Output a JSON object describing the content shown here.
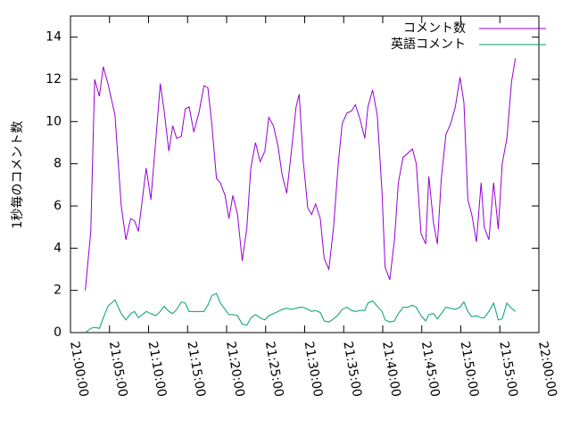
{
  "chart_data": {
    "type": "line",
    "y_label": "1秒毎のコメント数",
    "x": [
      "21:01:54",
      "21:02:36",
      "21:03:06",
      "21:03:42",
      "21:04:12",
      "21:04:48",
      "21:05:42",
      "21:06:30",
      "21:07:06",
      "21:07:42",
      "21:08:12",
      "21:08:42",
      "21:09:12",
      "21:09:42",
      "21:10:18",
      "21:10:54",
      "21:11:30",
      "21:12:00",
      "21:12:36",
      "21:13:06",
      "21:13:36",
      "21:14:12",
      "21:14:42",
      "21:15:12",
      "21:15:48",
      "21:16:30",
      "21:17:06",
      "21:17:36",
      "21:18:06",
      "21:18:42",
      "21:19:12",
      "21:19:48",
      "21:20:18",
      "21:20:48",
      "21:21:24",
      "21:22:00",
      "21:22:36",
      "21:23:06",
      "21:23:42",
      "21:24:18",
      "21:24:54",
      "21:25:24",
      "21:26:00",
      "21:26:36",
      "21:27:06",
      "21:27:42",
      "21:28:18",
      "21:28:54",
      "21:29:18",
      "21:29:48",
      "21:30:24",
      "21:30:54",
      "21:31:24",
      "21:32:00",
      "21:32:30",
      "21:33:06",
      "21:33:42",
      "21:34:18",
      "21:34:48",
      "21:35:24",
      "21:36:00",
      "21:36:30",
      "21:37:06",
      "21:37:42",
      "21:38:06",
      "21:38:42",
      "21:39:18",
      "21:39:54",
      "21:40:18",
      "21:40:54",
      "21:41:30",
      "21:42:00",
      "21:42:36",
      "21:43:12",
      "21:43:48",
      "21:44:18",
      "21:44:54",
      "21:45:30",
      "21:45:54",
      "21:46:30",
      "21:47:00",
      "21:47:30",
      "21:48:06",
      "21:48:42",
      "21:49:18",
      "21:49:54",
      "21:50:24",
      "21:50:54",
      "21:51:24",
      "21:52:00",
      "21:52:36",
      "21:53:00",
      "21:53:36",
      "21:54:12",
      "21:54:48",
      "21:55:18",
      "21:55:54",
      "21:56:30",
      "21:57:00"
    ],
    "series": [
      {
        "name": "コメント数",
        "color": "#9400d3",
        "values": [
          2.0,
          4.8,
          12.0,
          11.2,
          12.6,
          11.8,
          10.3,
          6.0,
          4.4,
          5.4,
          5.3,
          4.8,
          6.3,
          7.8,
          6.3,
          9.0,
          11.8,
          10.5,
          8.6,
          9.8,
          9.2,
          9.3,
          10.6,
          10.7,
          9.5,
          10.5,
          11.7,
          11.6,
          9.9,
          7.3,
          7.1,
          6.5,
          5.4,
          6.5,
          5.6,
          3.4,
          5.0,
          7.8,
          9.0,
          8.1,
          8.6,
          10.2,
          9.8,
          8.8,
          7.5,
          6.6,
          8.6,
          10.7,
          11.3,
          8.2,
          5.9,
          5.6,
          6.1,
          5.4,
          3.5,
          3.0,
          5.0,
          8.0,
          9.9,
          10.4,
          10.5,
          10.8,
          10.1,
          9.2,
          10.7,
          11.5,
          10.3,
          6.7,
          3.1,
          2.5,
          4.4,
          7.1,
          8.3,
          8.5,
          8.7,
          8.0,
          4.7,
          4.2,
          7.4,
          5.2,
          4.2,
          7.3,
          9.4,
          9.9,
          10.7,
          12.1,
          10.9,
          6.3,
          5.6,
          4.3,
          7.1,
          5.0,
          4.4,
          7.1,
          4.9,
          8.0,
          9.2,
          11.9,
          13.0
        ]
      },
      {
        "name": "英語コメント",
        "color": "#009e73",
        "values": [
          0.0,
          0.2,
          0.25,
          0.2,
          0.7,
          1.25,
          1.55,
          0.9,
          0.6,
          0.9,
          1.0,
          0.7,
          0.85,
          1.0,
          0.9,
          0.8,
          1.0,
          1.25,
          1.0,
          0.9,
          1.1,
          1.45,
          1.4,
          1.0,
          1.0,
          1.0,
          1.0,
          1.3,
          1.75,
          1.85,
          1.4,
          1.1,
          0.85,
          0.85,
          0.8,
          0.4,
          0.35,
          0.7,
          0.85,
          0.7,
          0.6,
          0.8,
          0.9,
          1.0,
          1.1,
          1.15,
          1.1,
          1.15,
          1.2,
          1.2,
          1.1,
          1.0,
          1.05,
          0.95,
          0.55,
          0.5,
          0.65,
          0.85,
          1.1,
          1.2,
          1.05,
          1.0,
          1.05,
          1.05,
          1.4,
          1.5,
          1.25,
          1.0,
          0.6,
          0.5,
          0.55,
          0.9,
          1.2,
          1.2,
          1.3,
          1.2,
          0.8,
          0.55,
          0.85,
          0.9,
          0.65,
          0.9,
          1.2,
          1.15,
          1.1,
          1.2,
          1.45,
          1.0,
          0.75,
          0.8,
          0.7,
          0.7,
          1.0,
          1.4,
          0.6,
          0.65,
          1.4,
          1.15,
          1.0
        ]
      }
    ],
    "xlim": [
      "21:00:00",
      "22:00:00"
    ],
    "xticks": [
      "21:00:00",
      "21:05:00",
      "21:10:00",
      "21:15:00",
      "21:20:00",
      "21:25:00",
      "21:30:00",
      "21:35:00",
      "21:40:00",
      "21:45:00",
      "21:50:00",
      "21:55:00",
      "22:00:00"
    ],
    "ylim": [
      0,
      15
    ],
    "yticks": [
      0,
      2,
      4,
      6,
      8,
      10,
      12,
      14
    ],
    "grid": false,
    "legend": "top-right"
  }
}
